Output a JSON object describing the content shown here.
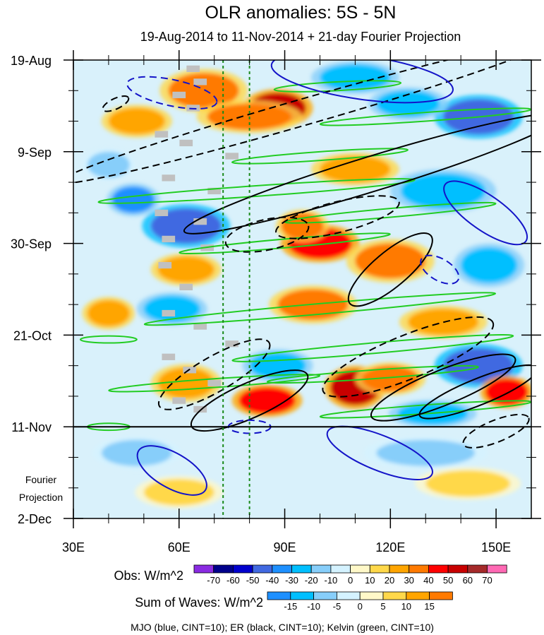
{
  "chart_data": {
    "type": "heatmap",
    "title": "OLR anomalies: 5S - 5N",
    "subtitle": "19-Aug-2014 to 11-Nov-2014 + 21-day Fourier Projection",
    "x_axis": {
      "range": [
        30,
        160
      ],
      "ticks": [
        {
          "value": 30,
          "label": "30E"
        },
        {
          "value": 60,
          "label": "60E"
        },
        {
          "value": 90,
          "label": "90E"
        },
        {
          "value": 120,
          "label": "120E"
        },
        {
          "value": 150,
          "label": "150E"
        }
      ]
    },
    "y_axis": {
      "range_days": [
        0,
        105
      ],
      "ticks": [
        {
          "day": 0,
          "label": "19-Aug"
        },
        {
          "day": 21,
          "label": "9-Sep"
        },
        {
          "day": 42,
          "label": "30-Sep"
        },
        {
          "day": 63,
          "label": "21-Oct"
        },
        {
          "day": 84,
          "label": "11-Nov"
        },
        {
          "day": 105,
          "label": "2-Dec"
        }
      ],
      "projection_start_day": 84,
      "projection_label_line1": "Fourier",
      "projection_label_line2": "Projection"
    },
    "reference_lines_lon": [
      72.5,
      80
    ],
    "obs_colorbar": {
      "label": "Obs: W/m^2",
      "levels": [
        "-70",
        "-60",
        "-50",
        "-40",
        "-30",
        "-20",
        "-10",
        "0",
        "10",
        "20",
        "30",
        "40",
        "50",
        "60",
        "70"
      ],
      "colors": [
        "#8a2be2",
        "#00008b",
        "#0000cd",
        "#4169e1",
        "#1e90ff",
        "#00bfff",
        "#87cefa",
        "#d4f2ff",
        "#fff8c8",
        "#ffd84a",
        "#ffa500",
        "#ff7a00",
        "#ff0000",
        "#c80000",
        "#a52a2a",
        "#ff69b4"
      ]
    },
    "waves_colorbar": {
      "label": "Sum of Waves: W/m^2",
      "levels": [
        "-15",
        "-10",
        "-5",
        "0",
        "5",
        "10",
        "15"
      ],
      "colors": [
        "#1e90ff",
        "#00bfff",
        "#87cefa",
        "#d4f2ff",
        "#fff8c8",
        "#ffd84a",
        "#ffa500",
        "#ff7a00"
      ]
    },
    "footer": "MJO (blue, CINT=10); ER (black, CINT=10); Kelvin (green, CINT=10)",
    "wave_colors": {
      "mjo": "#1414c8",
      "er": "#000000",
      "kelvin": "#22cc22",
      "ref": "#1a8a1a"
    },
    "obs_anomaly_regions": [
      {
        "lon": 67,
        "day": 7,
        "rlon": 10,
        "rday": 4,
        "value": 35
      },
      {
        "lon": 88,
        "day": 11,
        "rlon": 8,
        "rday": 3.5,
        "value": 55
      },
      {
        "lon": 80,
        "day": 13,
        "rlon": 12,
        "rday": 3,
        "value": 30
      },
      {
        "lon": 48,
        "day": 14,
        "rlon": 8,
        "rday": 3,
        "value": 20
      },
      {
        "lon": 110,
        "day": 4,
        "rlon": 10,
        "rday": 3,
        "value": -30
      },
      {
        "lon": 145,
        "day": 13,
        "rlon": 10,
        "rday": 4,
        "value": -50
      },
      {
        "lon": 125,
        "day": 10,
        "rlon": 9,
        "rday": 3,
        "value": -25
      },
      {
        "lon": 62,
        "day": 38,
        "rlon": 10,
        "rday": 4,
        "value": -50
      },
      {
        "lon": 47,
        "day": 32,
        "rlon": 6,
        "rday": 3,
        "value": -40
      },
      {
        "lon": 100,
        "day": 42,
        "rlon": 9,
        "rday": 3.5,
        "value": 45
      },
      {
        "lon": 95,
        "day": 38,
        "rlon": 6,
        "rday": 3,
        "value": 30
      },
      {
        "lon": 120,
        "day": 46,
        "rlon": 10,
        "rday": 4,
        "value": 30
      },
      {
        "lon": 62,
        "day": 48,
        "rlon": 8,
        "rday": 3,
        "value": 25
      },
      {
        "lon": 135,
        "day": 30,
        "rlon": 12,
        "rday": 4,
        "value": -30
      },
      {
        "lon": 110,
        "day": 25,
        "rlon": 10,
        "rday": 3,
        "value": 25
      },
      {
        "lon": 98,
        "day": 56,
        "rlon": 10,
        "rday": 3.5,
        "value": 30
      },
      {
        "lon": 58,
        "day": 57,
        "rlon": 8,
        "rday": 3,
        "value": -30
      },
      {
        "lon": 135,
        "day": 60,
        "rlon": 10,
        "rday": 3,
        "value": 25
      },
      {
        "lon": 148,
        "day": 47,
        "rlon": 8,
        "rday": 4,
        "value": -30
      },
      {
        "lon": 110,
        "day": 75,
        "rlon": 7,
        "rday": 4,
        "value": 55
      },
      {
        "lon": 120,
        "day": 73,
        "rlon": 8,
        "rday": 3,
        "value": 30
      },
      {
        "lon": 62,
        "day": 74,
        "rlon": 8,
        "rday": 3.5,
        "value": 20
      },
      {
        "lon": 145,
        "day": 70,
        "rlon": 10,
        "rday": 4,
        "value": -45
      },
      {
        "lon": 88,
        "day": 70,
        "rlon": 8,
        "rday": 3,
        "value": -30
      },
      {
        "lon": 85,
        "day": 78,
        "rlon": 8,
        "rday": 3,
        "value": 40
      },
      {
        "lon": 153,
        "day": 76,
        "rlon": 6,
        "rday": 3,
        "value": 45
      },
      {
        "lon": 40,
        "day": 58,
        "rlon": 6,
        "rday": 3,
        "value": 20
      },
      {
        "lon": 132,
        "day": 81,
        "rlon": 10,
        "rday": 2.5,
        "value": -25
      },
      {
        "lon": 40,
        "day": 24,
        "rlon": 6,
        "rday": 3,
        "value": -20
      },
      {
        "lon": 130,
        "day": 90,
        "rlon": 14,
        "rday": 3,
        "value": -8
      },
      {
        "lon": 48,
        "day": 90,
        "rlon": 10,
        "rday": 3,
        "value": -6
      },
      {
        "lon": 142,
        "day": 97,
        "rlon": 12,
        "rday": 3,
        "value": 6
      },
      {
        "lon": 60,
        "day": 99,
        "rlon": 10,
        "rday": 3,
        "value": 5
      }
    ],
    "missing_data_blocks": [
      {
        "lon": 64,
        "day": 2
      },
      {
        "lon": 66,
        "day": 5
      },
      {
        "lon": 60,
        "day": 8
      },
      {
        "lon": 64,
        "day": 11
      },
      {
        "lon": 55,
        "day": 17
      },
      {
        "lon": 62,
        "day": 19
      },
      {
        "lon": 75,
        "day": 22
      },
      {
        "lon": 57,
        "day": 27
      },
      {
        "lon": 70,
        "day": 30
      },
      {
        "lon": 55,
        "day": 35
      },
      {
        "lon": 66,
        "day": 37
      },
      {
        "lon": 57,
        "day": 41
      },
      {
        "lon": 68,
        "day": 43
      },
      {
        "lon": 56,
        "day": 47
      },
      {
        "lon": 62,
        "day": 52
      },
      {
        "lon": 57,
        "day": 58
      },
      {
        "lon": 66,
        "day": 61
      },
      {
        "lon": 75,
        "day": 65
      },
      {
        "lon": 57,
        "day": 68
      },
      {
        "lon": 63,
        "day": 71
      },
      {
        "lon": 70,
        "day": 74
      },
      {
        "lon": 60,
        "day": 78
      },
      {
        "lon": 66,
        "day": 80
      }
    ],
    "mjo_contours": [
      {
        "lon": 58,
        "day": 7.5,
        "rlon": 13,
        "rday": 3,
        "angle": 12,
        "dash": true
      },
      {
        "lon": 112,
        "day": 4,
        "rlon": 26,
        "rday": 5,
        "angle": 8,
        "dash": false
      },
      {
        "lon": 147,
        "day": 35,
        "rlon": 14,
        "rday": 4,
        "angle": 35,
        "dash": false
      },
      {
        "lon": 134,
        "day": 48,
        "rlon": 6,
        "rday": 2.5,
        "angle": 30,
        "dash": true
      },
      {
        "lon": 80,
        "day": 84,
        "rlon": 6,
        "rday": 1.5,
        "angle": 0,
        "dash": true
      },
      {
        "lon": 117,
        "day": 90,
        "rlon": 16,
        "rday": 4,
        "angle": 22,
        "dash": false
      },
      {
        "lon": 58,
        "day": 94,
        "rlon": 11,
        "rday": 4,
        "angle": 30,
        "dash": false
      }
    ],
    "er_contours": [
      {
        "lon": 95,
        "day": 12,
        "rlon": 72,
        "rday": 3,
        "angle": -16,
        "dash": true
      },
      {
        "lon": 115,
        "day": 26,
        "rlon": 56,
        "rday": 4,
        "angle": -17,
        "dash": false
      },
      {
        "lon": 85,
        "day": 40,
        "rlon": 12,
        "rday": 3.5,
        "angle": -12,
        "dash": true
      },
      {
        "lon": 105,
        "day": 36,
        "rlon": 18,
        "rday": 3.5,
        "angle": -14,
        "dash": true
      },
      {
        "lon": 120,
        "day": 48,
        "rlon": 15,
        "rday": 4,
        "angle": -40,
        "dash": false
      },
      {
        "lon": 70,
        "day": 72,
        "rlon": 18,
        "rday": 4,
        "angle": -30,
        "dash": true
      },
      {
        "lon": 80,
        "day": 78,
        "rlon": 18,
        "rday": 4,
        "angle": -24,
        "dash": false
      },
      {
        "lon": 125,
        "day": 68,
        "rlon": 26,
        "rday": 5,
        "angle": -22,
        "dash": true
      },
      {
        "lon": 135,
        "day": 75,
        "rlon": 22,
        "rday": 4,
        "angle": -22,
        "dash": false
      },
      {
        "lon": 145,
        "day": 76,
        "rlon": 18,
        "rday": 3,
        "angle": -22,
        "dash": false
      },
      {
        "lon": 150,
        "day": 85,
        "rlon": 10,
        "rday": 2.5,
        "angle": -22,
        "dash": true
      },
      {
        "lon": 42,
        "day": 10,
        "rlon": 4,
        "rday": 1.2,
        "angle": -25,
        "dash": true
      }
    ],
    "kelvin_contours": [
      {
        "lon": 105,
        "day": 6,
        "rlon": 18,
        "rday": 1,
        "angle": -3
      },
      {
        "lon": 130,
        "day": 13,
        "rlon": 30,
        "rday": 1,
        "angle": -4
      },
      {
        "lon": 100,
        "day": 22,
        "rlon": 25,
        "rday": 1,
        "angle": -4
      },
      {
        "lon": 82,
        "day": 30,
        "rlon": 45,
        "rday": 1.2,
        "angle": -4
      },
      {
        "lon": 120,
        "day": 35,
        "rlon": 30,
        "rday": 1,
        "angle": -5
      },
      {
        "lon": 90,
        "day": 42,
        "rlon": 30,
        "rday": 1,
        "angle": -5
      },
      {
        "lon": 100,
        "day": 57,
        "rlon": 50,
        "rday": 1.2,
        "angle": -5
      },
      {
        "lon": 115,
        "day": 66,
        "rlon": 40,
        "rday": 1.2,
        "angle": -5
      },
      {
        "lon": 70,
        "day": 74,
        "rlon": 30,
        "rday": 1,
        "angle": -4
      },
      {
        "lon": 115,
        "day": 72,
        "rlon": 30,
        "rday": 1,
        "angle": -4
      },
      {
        "lon": 130,
        "day": 80,
        "rlon": 30,
        "rday": 1,
        "angle": -4
      },
      {
        "lon": 40,
        "day": 64,
        "rlon": 8,
        "rday": 0.8,
        "angle": 0
      },
      {
        "lon": 40,
        "day": 84,
        "rlon": 6,
        "rday": 0.8,
        "angle": 0
      }
    ]
  }
}
